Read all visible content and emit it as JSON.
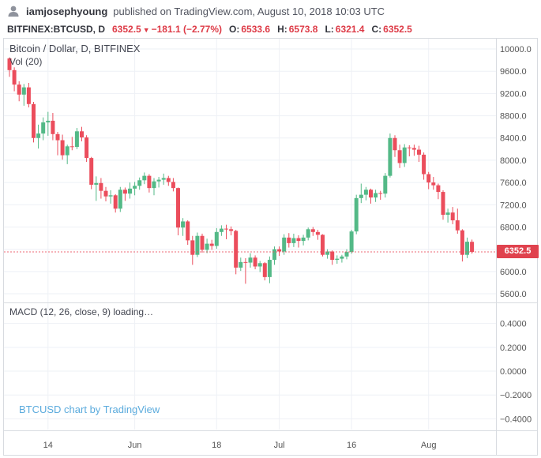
{
  "colors": {
    "up": "#53b987",
    "down": "#eb4d5c",
    "red_text": "#dd3a46",
    "grid": "#eef1f6",
    "border": "#d8dbe0",
    "axis_text": "#555555",
    "watermark": "#5babdd",
    "tag_bg": "#e0424e"
  },
  "header": {
    "username": "iamjosephyoung",
    "published": "published on TradingView.com, August 10, 2018 10:03 UTC"
  },
  "symbol_bar": {
    "symbol": "BITFINEX:BTCUSD, D",
    "price": "6352.5",
    "direction_icon": "▼",
    "change": "−181.1 (−2.77%)",
    "open_label": "O:",
    "open": "6533.6",
    "high_label": "H:",
    "high": "6573.8",
    "low_label": "L:",
    "low": "6321.4",
    "close_label": "C:",
    "close": "6352.5"
  },
  "chart": {
    "pane_title": "Bitcoin / Dollar, D, BITFINEX",
    "vol_label": "Vol (20)",
    "macd_label": "MACD (12, 26, close, 9) loading…",
    "watermark": "BTCUSD chart by TradingView",
    "price_tag": "6352.5"
  },
  "axes": {
    "price_tick_labels": [
      "10000.0",
      "9600.0",
      "9200.0",
      "8800.0",
      "8400.0",
      "8000.0",
      "7600.0",
      "7200.0",
      "6800.0",
      "6400.0",
      "6000.0",
      "5600.0"
    ],
    "macd_tick_labels": [
      "0.4000",
      "0.2000",
      "0.0000",
      "−0.2000",
      "−0.4000"
    ],
    "time_tick_labels": [
      "14",
      "Jun",
      "18",
      "Jul",
      "16",
      "Aug"
    ]
  },
  "chart_data": {
    "type": "candlestick",
    "title": "Bitcoin / Dollar, D, BITFINEX",
    "symbol": "BITFINEX:BTCUSD",
    "interval": "D",
    "last_price": 6352.5,
    "price_axis": {
      "min": 5444,
      "max": 10199,
      "ticks": [
        10000,
        9600,
        9200,
        8800,
        8400,
        8000,
        7600,
        7200,
        6800,
        6400,
        6000,
        5600
      ]
    },
    "macd_axis": {
      "min": -0.49,
      "max": 0.57,
      "ticks": [
        0.4,
        0.2,
        0,
        -0.2,
        -0.4
      ]
    },
    "time_ticks": [
      {
        "label": "14",
        "index": 8
      },
      {
        "label": "Jun",
        "index": 26
      },
      {
        "label": "18",
        "index": 43
      },
      {
        "label": "Jul",
        "index": 56
      },
      {
        "label": "16",
        "index": 71
      },
      {
        "label": "Aug",
        "index": 87
      }
    ],
    "candles_ohlc": [
      [
        9830,
        9850,
        9500,
        9620
      ],
      [
        9620,
        9670,
        9240,
        9360
      ],
      [
        9360,
        9420,
        9060,
        9180
      ],
      [
        9180,
        9370,
        8980,
        9310
      ],
      [
        9310,
        9390,
        8950,
        9010
      ],
      [
        9010,
        9050,
        8320,
        8400
      ],
      [
        8400,
        8640,
        8210,
        8480
      ],
      [
        8480,
        8770,
        8360,
        8680
      ],
      [
        8680,
        8870,
        8440,
        8710
      ],
      [
        8710,
        8850,
        8360,
        8470
      ],
      [
        8470,
        8510,
        8090,
        8360
      ],
      [
        8360,
        8460,
        8010,
        8090
      ],
      [
        8090,
        8280,
        7930,
        8250
      ],
      [
        8250,
        8420,
        8180,
        8240
      ],
      [
        8240,
        8580,
        8200,
        8520
      ],
      [
        8520,
        8600,
        8340,
        8410
      ],
      [
        8410,
        8450,
        7970,
        8040
      ],
      [
        8040,
        8060,
        7480,
        7560
      ],
      [
        7560,
        7710,
        7270,
        7590
      ],
      [
        7590,
        7680,
        7310,
        7450
      ],
      [
        7450,
        7520,
        7260,
        7350
      ],
      [
        7350,
        7460,
        7220,
        7370
      ],
      [
        7370,
        7390,
        7060,
        7130
      ],
      [
        7130,
        7520,
        7070,
        7470
      ],
      [
        7470,
        7510,
        7270,
        7400
      ],
      [
        7400,
        7600,
        7310,
        7490
      ],
      [
        7490,
        7610,
        7370,
        7540
      ],
      [
        7540,
        7690,
        7470,
        7640
      ],
      [
        7640,
        7780,
        7570,
        7720
      ],
      [
        7720,
        7750,
        7420,
        7500
      ],
      [
        7500,
        7680,
        7370,
        7620
      ],
      [
        7620,
        7700,
        7510,
        7650
      ],
      [
        7650,
        7760,
        7560,
        7680
      ],
      [
        7680,
        7720,
        7540,
        7610
      ],
      [
        7610,
        7680,
        7440,
        7500
      ],
      [
        7500,
        7510,
        6650,
        6790
      ],
      [
        6790,
        6960,
        6640,
        6900
      ],
      [
        6900,
        6920,
        6480,
        6560
      ],
      [
        6560,
        6640,
        6120,
        6300
      ],
      [
        6300,
        6700,
        6260,
        6640
      ],
      [
        6640,
        6680,
        6340,
        6390
      ],
      [
        6390,
        6590,
        6330,
        6500
      ],
      [
        6500,
        6570,
        6390,
        6460
      ],
      [
        6460,
        6780,
        6410,
        6710
      ],
      [
        6710,
        6830,
        6640,
        6770
      ],
      [
        6770,
        6840,
        6580,
        6760
      ],
      [
        6760,
        6810,
        6650,
        6730
      ],
      [
        6730,
        6750,
        5950,
        6070
      ],
      [
        6070,
        6250,
        6010,
        6170
      ],
      [
        6170,
        6240,
        5780,
        6160
      ],
      [
        6160,
        6330,
        6070,
        6250
      ],
      [
        6250,
        6290,
        6040,
        6090
      ],
      [
        6090,
        6190,
        5990,
        6150
      ],
      [
        6150,
        6170,
        5840,
        5900
      ],
      [
        5900,
        6270,
        5790,
        6210
      ],
      [
        6210,
        6450,
        6120,
        6400
      ],
      [
        6400,
        6450,
        6280,
        6360
      ],
      [
        6360,
        6670,
        6300,
        6610
      ],
      [
        6610,
        6690,
        6430,
        6510
      ],
      [
        6510,
        6680,
        6440,
        6600
      ],
      [
        6600,
        6650,
        6430,
        6550
      ],
      [
        6550,
        6660,
        6470,
        6610
      ],
      [
        6610,
        6790,
        6560,
        6760
      ],
      [
        6760,
        6800,
        6640,
        6710
      ],
      [
        6710,
        6750,
        6570,
        6660
      ],
      [
        6660,
        6670,
        6270,
        6300
      ],
      [
        6300,
        6400,
        6230,
        6360
      ],
      [
        6360,
        6380,
        6120,
        6210
      ],
      [
        6210,
        6290,
        6140,
        6230
      ],
      [
        6230,
        6300,
        6160,
        6270
      ],
      [
        6270,
        6400,
        6220,
        6350
      ],
      [
        6350,
        6750,
        6320,
        6720
      ],
      [
        6720,
        7380,
        6670,
        7320
      ],
      [
        7320,
        7580,
        7230,
        7380
      ],
      [
        7380,
        7520,
        7280,
        7470
      ],
      [
        7470,
        7490,
        7220,
        7330
      ],
      [
        7330,
        7470,
        7250,
        7410
      ],
      [
        7410,
        7450,
        7290,
        7400
      ],
      [
        7400,
        7770,
        7330,
        7720
      ],
      [
        7720,
        8480,
        7690,
        8400
      ],
      [
        8400,
        8450,
        8060,
        8180
      ],
      [
        8180,
        8280,
        7860,
        7950
      ],
      [
        7950,
        8290,
        7880,
        8230
      ],
      [
        8230,
        8270,
        8070,
        8220
      ],
      [
        8220,
        8280,
        8080,
        8190
      ],
      [
        8190,
        8260,
        7970,
        8100
      ],
      [
        8100,
        8140,
        7650,
        7750
      ],
      [
        7750,
        7790,
        7480,
        7600
      ],
      [
        7600,
        7700,
        7470,
        7550
      ],
      [
        7550,
        7580,
        7300,
        7430
      ],
      [
        7430,
        7460,
        6930,
        7020
      ],
      [
        7020,
        7130,
        6880,
        7060
      ],
      [
        7060,
        7160,
        6850,
        6920
      ],
      [
        6920,
        7130,
        6680,
        6740
      ],
      [
        6740,
        6760,
        6180,
        6300
      ],
      [
        6300,
        6610,
        6240,
        6535
      ],
      [
        6533.6,
        6573.8,
        6321.4,
        6352.5
      ]
    ]
  }
}
